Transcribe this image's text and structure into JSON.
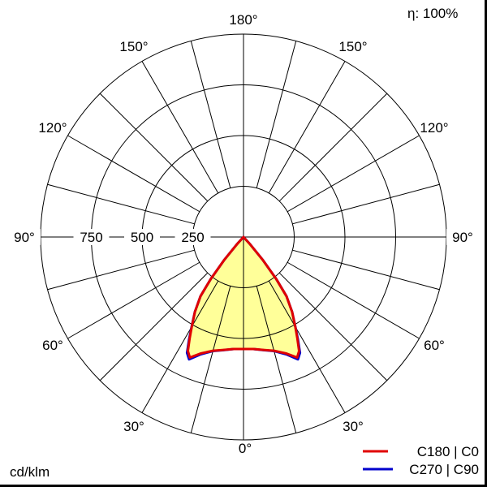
{
  "chart_data": {
    "type": "polar",
    "unit_label": "cd/klm",
    "efficiency_label": "η: 100%",
    "rmax": 1000,
    "radial_ticks": [
      250,
      500,
      750
    ],
    "angle_ticks": [
      "180°",
      "150°",
      "150°",
      "120°",
      "120°",
      "90°",
      "90°",
      "60°",
      "60°",
      "30°",
      "30°",
      "0°"
    ],
    "angle_step_deg": 15,
    "fill_color": "#ffff99",
    "series": [
      {
        "name": "C180 | C0",
        "color": "#e00000",
        "angles": [
          0,
          5,
          10,
          15,
          20,
          24,
          26,
          28,
          30,
          33,
          36,
          38,
          40,
          42,
          44,
          180
        ],
        "values": [
          552,
          554,
          565,
          580,
          610,
          650,
          625,
          565,
          510,
          440,
          360,
          260,
          150,
          50,
          0,
          0
        ]
      },
      {
        "name": "C270 | C90",
        "color": "#0000cc",
        "angles": [
          0,
          5,
          10,
          15,
          20,
          24,
          26,
          28,
          30,
          33,
          36,
          38,
          40,
          42,
          44,
          180
        ],
        "values": [
          552,
          554,
          566,
          582,
          615,
          660,
          635,
          572,
          512,
          440,
          360,
          260,
          150,
          50,
          0,
          0
        ]
      }
    ]
  }
}
